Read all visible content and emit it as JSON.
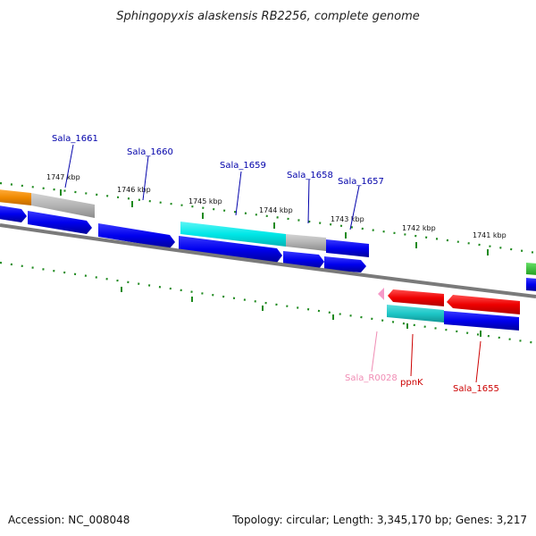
{
  "title": "Sphingopyxis alaskensis RB2256, complete genome",
  "footer": {
    "accession": "Accession: NC_008048",
    "summary": "Topology: circular; Length: 3,345,170 bp; Genes: 3,217"
  },
  "ruler_labels": [
    "1747 kbp",
    "1746 kbp",
    "1745 kbp",
    "1744 kbp",
    "1743 kbp",
    "1742 kbp",
    "1741 kbp"
  ],
  "gene_labels": [
    {
      "text": "Sala_1661",
      "color": "#0000aa"
    },
    {
      "text": "Sala_1660",
      "color": "#0000aa"
    },
    {
      "text": "Sala_1659",
      "color": "#0000aa"
    },
    {
      "text": "Sala_1658",
      "color": "#0000aa"
    },
    {
      "text": "Sala_1657",
      "color": "#0000aa"
    },
    {
      "text": "Sala_R0028",
      "color": "#f08cb4"
    },
    {
      "text": "ppnK",
      "color": "#cc0000"
    },
    {
      "text": "Sala_1655",
      "color": "#cc0000"
    }
  ],
  "colors": {
    "backbone": "#7a7a7a",
    "ruler": "#1f8a1f",
    "cds": "#0000ee",
    "gene_orange": "#f08a00",
    "gene_gray": "#b4b4b4",
    "gene_cyan": "#00e8e8",
    "gene_teal": "#1ec8c8",
    "gene_red": "#ee0000",
    "gene_pink": "#f59ac8",
    "gene_green": "#33cc33"
  }
}
